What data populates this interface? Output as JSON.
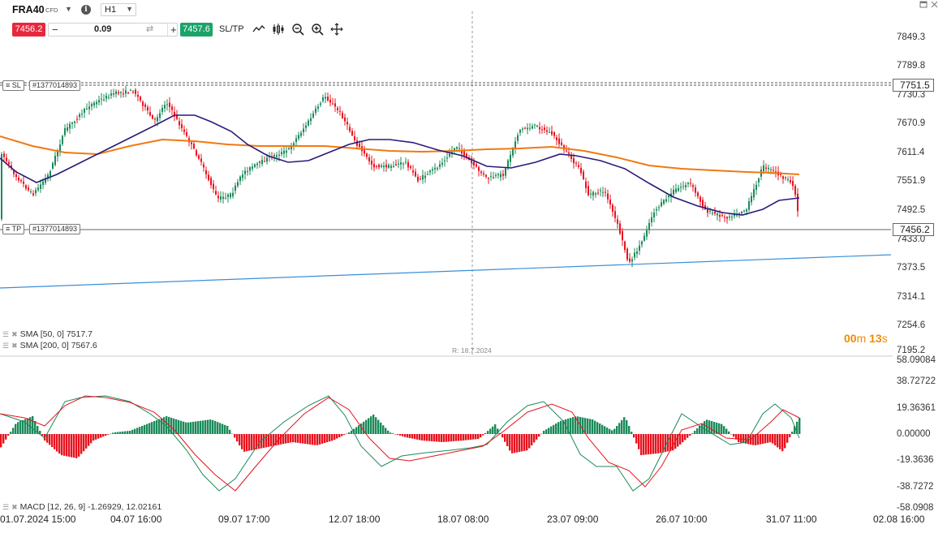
{
  "header": {
    "symbol": "FRA40",
    "symbol_type": "CFD",
    "timeframe": "H1",
    "sell_price": "7456.2",
    "volume": "0.09",
    "buy_price": "7457.6",
    "sltp_label": "SL/TP",
    "minus_label": "−",
    "plus_label": "+",
    "info_label": "i"
  },
  "chart": {
    "price_labels": [
      "7849.3",
      "7789.8",
      "7730.3",
      "7670.9",
      "7611.4",
      "7551.9",
      "7492.5",
      "7433.0",
      "7373.5",
      "7314.1",
      "7254.6",
      "7195.2"
    ],
    "current_price": "7456.2",
    "sl_price": "7751.5",
    "sl_tag": "SL",
    "sl_order": "#1377014893",
    "tp_tag": "TP",
    "tp_order": "#1377014893",
    "sma50_label": "SMA [50, 0] 7517.7",
    "sma200_label": "SMA [200, 0] 7567.6",
    "ruler_note": "R: 18.7.2024",
    "timer_min": "00",
    "timer_min_unit": "m",
    "timer_sec": "13",
    "timer_sec_unit": "s",
    "colors": {
      "bull": "#1b8a5a",
      "bear": "#e8131f",
      "sma50": "#2a1a7a",
      "sma200": "#f07a10",
      "trend": "#3a8fd8"
    }
  },
  "macd": {
    "labels": [
      "58.09084",
      "38.72722",
      "19.36361",
      "0.00000",
      "-19.3636",
      "-38.7272",
      "-58.0908"
    ],
    "legend": "MACD [12, 26, 9] -1.26929, 12.02161"
  },
  "x_axis": [
    "01.07.2024 15:00",
    "04.07 16:00",
    "09.07 17:00",
    "12.07 18:00",
    "18.07 08:00",
    "23.07 09:00",
    "26.07 10:00",
    "31.07 11:00",
    "02.08 16:00"
  ]
}
